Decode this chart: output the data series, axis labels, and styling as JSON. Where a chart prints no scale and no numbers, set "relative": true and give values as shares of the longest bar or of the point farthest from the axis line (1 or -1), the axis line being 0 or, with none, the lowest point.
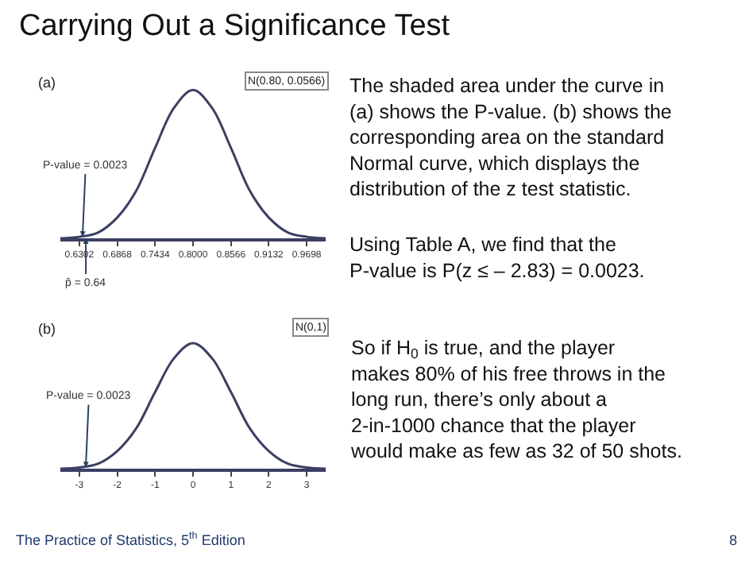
{
  "chart_data": [
    {
      "type": "line",
      "relative": true,
      "x": [
        0.6019,
        0.6302,
        0.6585,
        0.6868,
        0.7151,
        0.7434,
        0.7717,
        0.8,
        0.8283,
        0.8566,
        0.8849,
        0.9132,
        0.9415,
        0.9698,
        0.9981
      ],
      "values": [
        0,
        0.01,
        0.04,
        0.14,
        0.32,
        0.61,
        0.88,
        1,
        0.88,
        0.61,
        0.32,
        0.14,
        0.04,
        0.01,
        0
      ],
      "color": "#3b3f63",
      "xlim": [
        0.6019,
        0.9981
      ],
      "xticks": [
        0.6302,
        0.6868,
        0.7434,
        {
          "value": 0.8,
          "label": "0.8000"
        },
        0.8566,
        0.9132,
        0.9698
      ],
      "annotations": [
        "(a)",
        "N(0.80, 0.0566)",
        {
          "text": "P-value = 0.0023",
          "x": 0.635,
          "y": 0.01
        },
        {
          "text": "p̂ = 0.64",
          "x": 0.64,
          "y": 0
        }
      ]
    },
    {
      "type": "line",
      "relative": true,
      "x": [
        -3.5,
        -3,
        -2.5,
        -2,
        -1.5,
        -1,
        -0.5,
        0,
        0.5,
        1,
        1.5,
        2,
        2.5,
        3,
        3.5
      ],
      "values": [
        0,
        0.01,
        0.04,
        0.14,
        0.32,
        0.61,
        0.88,
        1,
        0.88,
        0.61,
        0.32,
        0.14,
        0.04,
        0.01,
        0
      ],
      "color": "#3b3f63",
      "xlim": [
        -3.5,
        3.5
      ],
      "xticks": [
        -3,
        -2,
        -1,
        0,
        1,
        2,
        3
      ],
      "annotations": [
        "(b)",
        "N(0,1)",
        {
          "text": "P-value = 0.0023",
          "x": -2.83,
          "y": 0.01
        }
      ]
    },
    {
      "type": "other",
      "title": "Carrying Out a Significance Test",
      "annotations": [
        "The shaded area under the curve in (a) shows the P-value. (b) shows the corresponding area on the standard Normal curve, which displays the distribution of the z test statistic.",
        "Using Table A, we find that the P-value is P(z ≤ – 2.83) = 0.0023.",
        "So if H$_{0}$ is true, and the player makes 80% of his free throws in the long run, there’s only about a 2-in-1000 chance that the player would make as few as 32 of 50 shots.",
        "The Practice of Statistics, 5$^{th}$ Edition",
        "8"
      ]
    }
  ]
}
